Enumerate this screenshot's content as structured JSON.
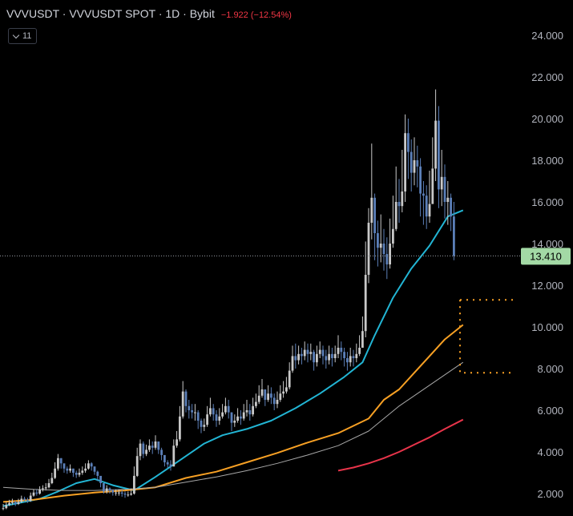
{
  "header": {
    "symbol_line": "VVVUSDT · VVVUSDT SPOT · 1D · Bybit",
    "change": "−1.922 (−12.54%)"
  },
  "indicators_button": {
    "count": "11"
  },
  "colors": {
    "background": "#000000",
    "candle_up": "#c8c8c8",
    "candle_down": "#5b7fb8",
    "ma_fast": "#22b5d4",
    "ma_orange": "#f7a024",
    "ma_gray": "#a7a7a7",
    "ma_red": "#e8344a",
    "box": "#f7a024",
    "last_price_bg": "#a3d9a5",
    "change_text": "#f23645"
  },
  "chart_data": {
    "type": "line",
    "title": "",
    "xlabel": "",
    "ylabel": "",
    "ylim": [
      1.3,
      24.8
    ],
    "y_ticks": [
      "24.000",
      "22.000",
      "20.000",
      "18.000",
      "16.000",
      "14.000",
      "12.000",
      "10.000",
      "8.000",
      "6.000",
      "4.000",
      "2.000"
    ],
    "last_price": "13.410",
    "grid": false,
    "series": [
      {
        "style": "candles",
        "close": [
          1.3,
          1.45,
          1.55,
          1.6,
          1.5,
          1.6,
          1.75,
          1.7,
          1.65,
          1.9,
          2.05,
          2.0,
          2.2,
          2.25,
          2.3,
          2.5,
          2.75,
          3.2,
          3.7,
          3.45,
          3.2,
          3.1,
          3.2,
          3.0,
          2.9,
          3.0,
          3.1,
          3.2,
          3.45,
          3.3,
          3.05,
          2.85,
          2.5,
          2.1,
          2.25,
          2.15,
          2.05,
          2.05,
          2.05,
          2.0,
          1.95,
          1.95,
          2.0,
          2.85,
          3.8,
          4.4,
          3.9,
          4.1,
          4.3,
          4.2,
          4.5,
          4.1,
          3.85,
          3.5,
          3.4,
          3.3,
          4.3,
          4.6,
          5.7,
          6.9,
          6.2,
          6.0,
          5.9,
          5.9,
          5.5,
          5.2,
          5.3,
          5.8,
          6.1,
          5.8,
          5.5,
          5.7,
          5.9,
          6.2,
          5.9,
          5.4,
          5.5,
          5.7,
          5.6,
          5.9,
          6.0,
          5.8,
          6.2,
          6.4,
          6.7,
          7.0,
          6.5,
          6.8,
          6.6,
          6.3,
          6.5,
          6.8,
          6.9,
          7.1,
          7.9,
          8.6,
          8.4,
          8.7,
          8.6,
          8.9,
          8.7,
          8.8,
          8.3,
          8.7,
          8.9,
          8.6,
          8.4,
          8.7,
          8.5,
          8.7,
          9.0,
          8.8,
          8.5,
          8.3,
          8.6,
          8.5,
          8.7,
          9.0,
          9.8,
          12.5,
          15.0,
          16.2,
          14.5,
          13.8,
          14.0,
          13.5,
          13.0,
          14.0,
          14.7,
          16.0,
          15.8,
          16.5,
          19.3,
          18.4,
          17.4,
          18.0,
          17.7,
          16.4,
          16.3,
          15.3,
          15.9,
          17.6,
          19.9,
          16.6,
          17.2,
          16.0,
          16.2,
          15.3,
          13.41
        ],
        "high": [
          1.5,
          1.6,
          1.7,
          1.75,
          1.65,
          1.75,
          1.9,
          1.85,
          1.8,
          2.05,
          2.2,
          2.2,
          2.35,
          2.4,
          2.5,
          2.7,
          3.0,
          3.5,
          3.9,
          3.7,
          3.4,
          3.3,
          3.4,
          3.2,
          3.1,
          3.2,
          3.3,
          3.45,
          3.6,
          3.5,
          3.3,
          3.1,
          2.8,
          2.5,
          2.4,
          2.3,
          2.2,
          2.2,
          2.2,
          2.15,
          2.1,
          2.1,
          2.25,
          3.3,
          4.2,
          4.6,
          4.5,
          4.35,
          4.6,
          4.5,
          4.8,
          4.5,
          4.2,
          3.8,
          3.6,
          3.6,
          4.6,
          5.0,
          6.2,
          7.4,
          7.0,
          6.5,
          6.3,
          6.3,
          6.0,
          5.6,
          5.6,
          6.2,
          6.6,
          6.3,
          6.0,
          6.1,
          6.3,
          6.6,
          6.5,
          5.9,
          5.8,
          6.1,
          6.0,
          6.3,
          6.5,
          6.3,
          6.6,
          6.8,
          7.2,
          7.5,
          7.0,
          7.2,
          7.1,
          6.8,
          6.9,
          7.2,
          7.4,
          7.6,
          8.3,
          9.1,
          9.2,
          9.1,
          9.0,
          9.3,
          9.2,
          9.2,
          8.9,
          9.1,
          9.3,
          9.1,
          8.9,
          9.1,
          9.0,
          9.1,
          9.6,
          9.3,
          9.0,
          8.8,
          9.0,
          8.9,
          9.2,
          9.6,
          10.5,
          14.1,
          15.7,
          18.8,
          16.4,
          15.1,
          15.4,
          14.7,
          14.3,
          15.2,
          16.3,
          17.7,
          17.1,
          18.5,
          20.2,
          20.0,
          19.0,
          19.1,
          18.7,
          18.1,
          17.0,
          16.8,
          17.5,
          19.1,
          21.4,
          20.6,
          18.5,
          17.8,
          17.0,
          16.4,
          16.0
        ],
        "low": [
          1.2,
          1.25,
          1.4,
          1.45,
          1.4,
          1.45,
          1.55,
          1.6,
          1.55,
          1.6,
          1.85,
          1.9,
          1.95,
          2.1,
          2.15,
          2.25,
          2.45,
          2.7,
          3.1,
          3.2,
          3.0,
          2.95,
          3.0,
          2.8,
          2.75,
          2.8,
          2.9,
          3.0,
          3.15,
          3.1,
          2.9,
          2.6,
          2.3,
          2.0,
          2.0,
          2.0,
          1.9,
          1.9,
          1.9,
          1.85,
          1.8,
          1.85,
          1.9,
          1.95,
          2.8,
          3.6,
          3.7,
          3.8,
          4.0,
          3.9,
          4.1,
          3.9,
          3.6,
          3.3,
          3.2,
          3.1,
          3.3,
          4.2,
          4.5,
          5.6,
          5.9,
          5.6,
          5.6,
          5.5,
          5.1,
          4.9,
          5.0,
          5.2,
          5.7,
          5.5,
          5.2,
          5.3,
          5.6,
          5.8,
          5.6,
          5.0,
          5.2,
          5.4,
          5.3,
          5.5,
          5.7,
          5.5,
          5.7,
          6.1,
          6.3,
          6.6,
          6.2,
          6.4,
          6.3,
          6.0,
          6.1,
          6.4,
          6.6,
          6.8,
          7.0,
          7.8,
          8.0,
          8.2,
          8.2,
          8.4,
          8.3,
          8.4,
          7.9,
          8.1,
          8.5,
          8.2,
          8.0,
          8.2,
          8.1,
          8.3,
          8.5,
          8.4,
          8.1,
          7.9,
          8.1,
          8.1,
          8.3,
          8.6,
          9.0,
          9.5,
          12.1,
          14.2,
          13.2,
          12.9,
          13.1,
          12.7,
          12.3,
          12.8,
          13.8,
          14.6,
          15.0,
          15.5,
          16.0,
          17.1,
          16.5,
          16.8,
          16.7,
          15.3,
          14.9,
          14.7,
          15.0,
          15.9,
          17.0,
          15.7,
          15.8,
          15.2,
          14.9,
          14.6,
          13.2
        ]
      },
      {
        "style": "line",
        "color": "#22b5d4",
        "x": [
          0,
          12,
          18,
          24,
          30,
          36,
          43,
          50,
          58,
          66,
          72,
          80,
          88,
          96,
          104,
          112,
          118,
          122,
          128,
          134,
          140,
          146,
          151
        ],
        "y": [
          1.4,
          1.75,
          2.1,
          2.5,
          2.7,
          2.4,
          2.15,
          2.8,
          3.6,
          4.4,
          4.8,
          5.1,
          5.5,
          6.1,
          6.8,
          7.6,
          8.3,
          9.6,
          11.4,
          12.8,
          13.9,
          15.3,
          15.6
        ]
      },
      {
        "style": "line",
        "color": "#f7a024",
        "x": [
          0,
          10,
          20,
          30,
          40,
          50,
          60,
          70,
          80,
          90,
          100,
          110,
          120,
          125,
          130,
          135,
          140,
          145,
          151
        ],
        "y": [
          1.6,
          1.7,
          1.9,
          2.05,
          2.15,
          2.3,
          2.75,
          3.05,
          3.5,
          3.95,
          4.45,
          4.9,
          5.6,
          6.5,
          7.0,
          7.8,
          8.6,
          9.4,
          10.1
        ]
      },
      {
        "style": "line",
        "color": "#a7a7a7",
        "x": [
          0,
          10,
          20,
          30,
          40,
          50,
          60,
          70,
          80,
          90,
          100,
          110,
          120,
          130,
          140,
          151
        ],
        "y": [
          2.3,
          2.2,
          2.15,
          2.15,
          2.2,
          2.3,
          2.55,
          2.8,
          3.1,
          3.45,
          3.85,
          4.3,
          5.0,
          6.2,
          7.2,
          8.3
        ]
      },
      {
        "style": "line",
        "color": "#e8344a",
        "x": [
          110,
          115,
          120,
          125,
          130,
          135,
          140,
          145,
          151
        ],
        "y": [
          3.1,
          3.25,
          3.45,
          3.7,
          4.0,
          4.35,
          4.7,
          5.1,
          5.55
        ]
      }
    ],
    "annotations": [
      {
        "type": "dotted-box",
        "color": "#f7a024",
        "x_from": 150,
        "x_to": 168,
        "y_from": 7.8,
        "y_to": 11.3
      }
    ]
  }
}
